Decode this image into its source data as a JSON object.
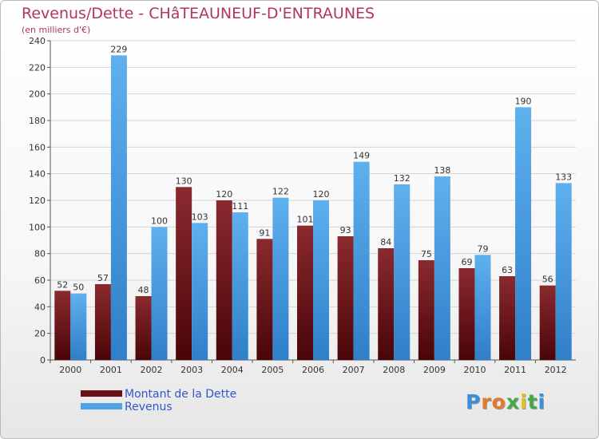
{
  "title": "Revenus/Dette - CHâTEAUNEUF-D'ENTRAUNES",
  "subtitle": "(en milliers d'€)",
  "logo": "Proxiti",
  "colors": {
    "debt": "#7a1a1f",
    "revenue": "#4ea3e6",
    "title": "#b0365e"
  },
  "legend": [
    {
      "label": "Montant de la Dette",
      "color": "#6b1015"
    },
    {
      "label": "Revenus",
      "color": "#4ea3e6"
    }
  ],
  "chart_data": {
    "type": "bar",
    "title": "Revenus/Dette - CHâTEAUNEUF-D'ENTRAUNES",
    "subtitle": "(en milliers d'€)",
    "xlabel": "",
    "ylabel": "",
    "ylim": [
      0,
      240
    ],
    "ytick_step": 20,
    "grid": true,
    "legend_position": "bottom-left",
    "categories": [
      "2000",
      "2001",
      "2002",
      "2003",
      "2004",
      "2005",
      "2006",
      "2007",
      "2008",
      "2009",
      "2010",
      "2011",
      "2012"
    ],
    "series": [
      {
        "name": "Montant de la Dette",
        "values": [
          52,
          57,
          48,
          130,
          120,
          91,
          101,
          93,
          84,
          75,
          69,
          63,
          56
        ]
      },
      {
        "name": "Revenus",
        "values": [
          50,
          229,
          100,
          103,
          111,
          122,
          120,
          149,
          132,
          138,
          79,
          190,
          133
        ]
      }
    ]
  }
}
